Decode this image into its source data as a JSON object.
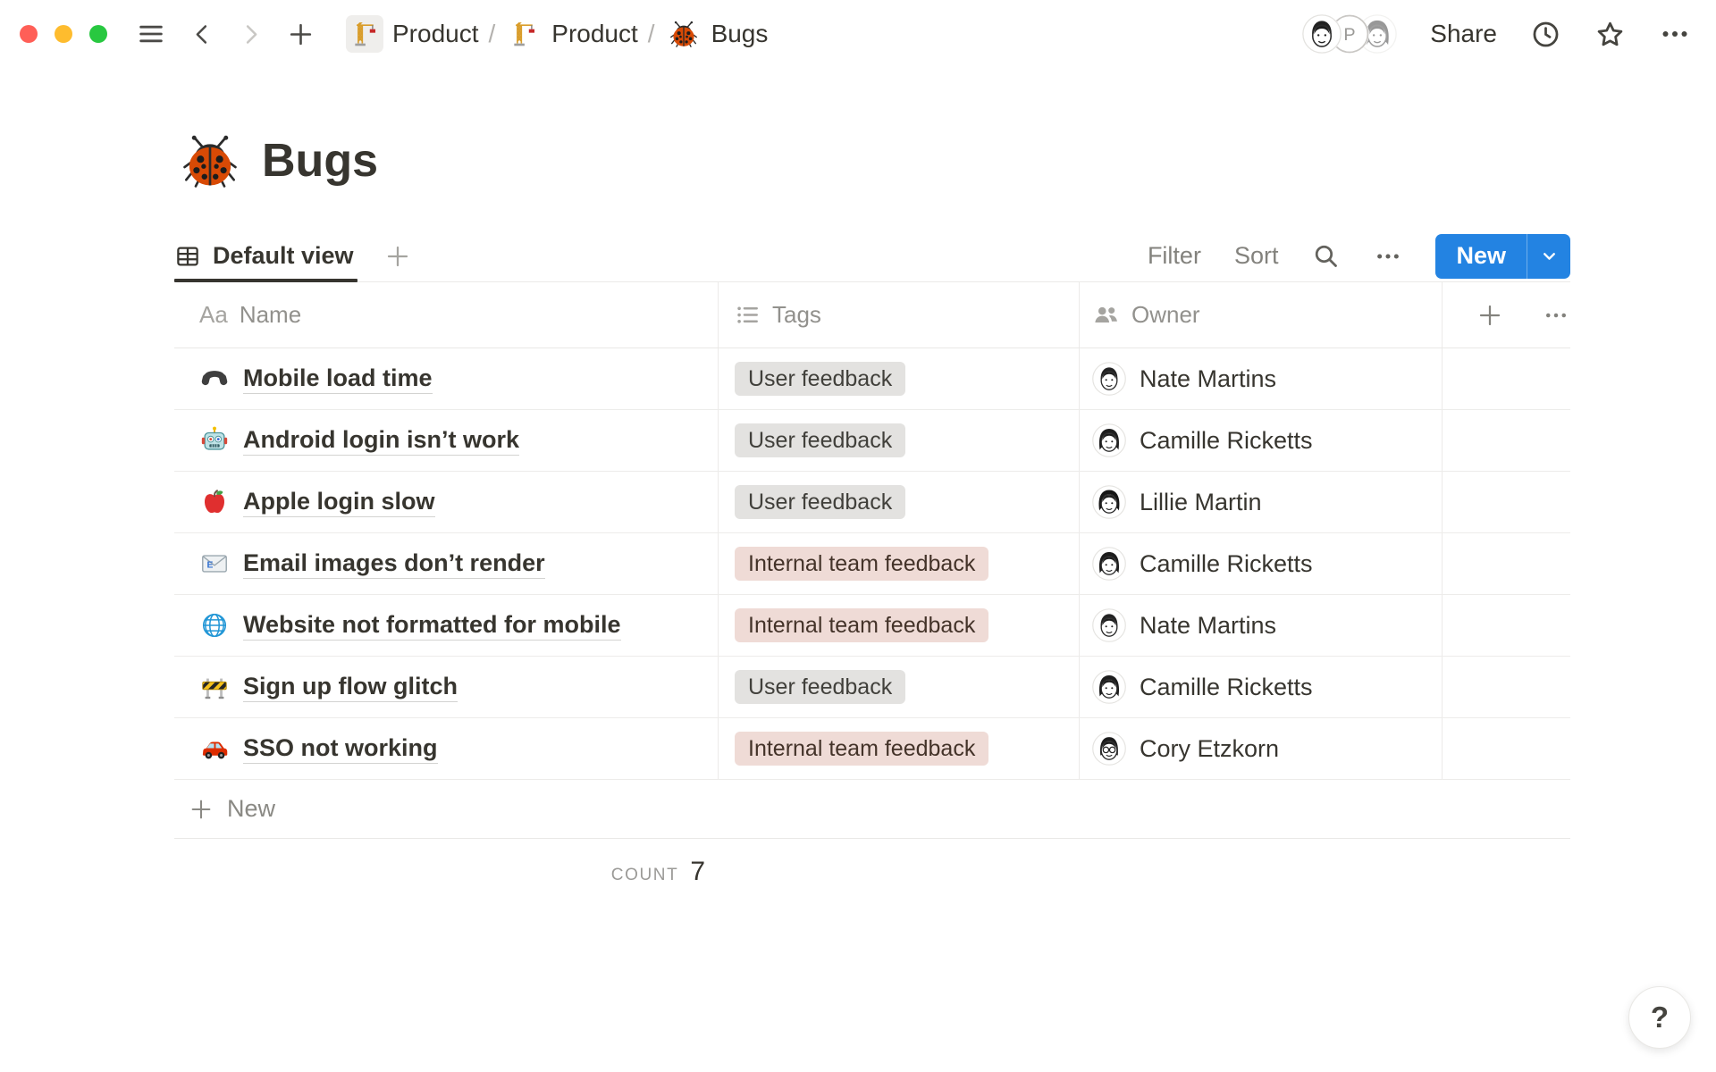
{
  "topbar": {
    "traffic_lights": [
      {
        "name": "close",
        "color": "#ff5f57"
      },
      {
        "name": "minimize",
        "color": "#febc2e"
      },
      {
        "name": "zoom",
        "color": "#28c840"
      }
    ],
    "nav_icons": [
      "sidebar-toggle",
      "back",
      "forward",
      "new-page"
    ],
    "breadcrumbs": [
      {
        "icon": "crane",
        "label": "Product",
        "highlighted": true
      },
      {
        "icon": "crane",
        "label": "Product"
      },
      {
        "icon": "ladybug",
        "label": "Bugs"
      }
    ],
    "separator": "/",
    "presence_avatars": [
      {
        "type": "man",
        "name": "man-sketch-avatar"
      },
      {
        "type": "initial",
        "initial": "P"
      },
      {
        "type": "woman-faded",
        "name": "woman-sketch-avatar"
      }
    ],
    "share_label": "Share",
    "action_icons": [
      "history-clock",
      "favorite-star",
      "more-ellipsis"
    ]
  },
  "page": {
    "icon": "ladybug",
    "title": "Bugs"
  },
  "viewbar": {
    "tabs": [
      {
        "icon": "table",
        "label": "Default view",
        "active": true
      }
    ],
    "add_view_icon": "plus",
    "filter_label": "Filter",
    "sort_label": "Sort",
    "icons": [
      "search",
      "more-ellipsis"
    ],
    "new_label": "New"
  },
  "table": {
    "columns": [
      {
        "icon": "text",
        "icon_glyph": "Aa",
        "label": "Name"
      },
      {
        "icon": "bulleted-list",
        "label": "Tags"
      },
      {
        "icon": "people",
        "label": "Owner"
      }
    ],
    "add_column_icons": [
      "add-column",
      "more-ellipsis"
    ],
    "rows": [
      {
        "icon": "phone",
        "name": "Mobile load time",
        "tag": {
          "label": "User feedback",
          "color": "gray"
        },
        "owner": {
          "name": "Nate Martins",
          "avatar": "man"
        }
      },
      {
        "icon": "robot",
        "name": "Android login isn’t work",
        "tag": {
          "label": "User feedback",
          "color": "gray"
        },
        "owner": {
          "name": "Camille Ricketts",
          "avatar": "woman"
        }
      },
      {
        "icon": "apple",
        "name": "Apple login slow",
        "tag": {
          "label": "User feedback",
          "color": "gray"
        },
        "owner": {
          "name": "Lillie Martin",
          "avatar": "woman2"
        }
      },
      {
        "icon": "email",
        "name": "Email images don’t render",
        "tag": {
          "label": "Internal team feedback",
          "color": "red"
        },
        "owner": {
          "name": "Camille Ricketts",
          "avatar": "woman"
        }
      },
      {
        "icon": "globe",
        "name": "Website not formatted for mobile",
        "tag": {
          "label": "Internal team feedback",
          "color": "red"
        },
        "owner": {
          "name": "Nate Martins",
          "avatar": "man"
        }
      },
      {
        "icon": "construction",
        "name": "Sign up flow glitch",
        "tag": {
          "label": "User feedback",
          "color": "gray"
        },
        "owner": {
          "name": "Camille Ricketts",
          "avatar": "woman"
        }
      },
      {
        "icon": "car",
        "name": "SSO not working",
        "tag": {
          "label": "Internal team feedback",
          "color": "red"
        },
        "owner": {
          "name": "Cory Etzkorn",
          "avatar": "man-glasses"
        }
      }
    ],
    "new_row_label": "New",
    "footer": {
      "count_label": "COUNT",
      "count_value": "7"
    }
  },
  "help_label": "?",
  "colors": {
    "accent_blue": "#2383e2",
    "active_tab_underline": "#37352f",
    "tag_gray_bg": "#e3e2e0",
    "tag_gray_text": "#41403b",
    "tag_red_bg": "#efdbd6",
    "tag_red_text": "#443329"
  }
}
